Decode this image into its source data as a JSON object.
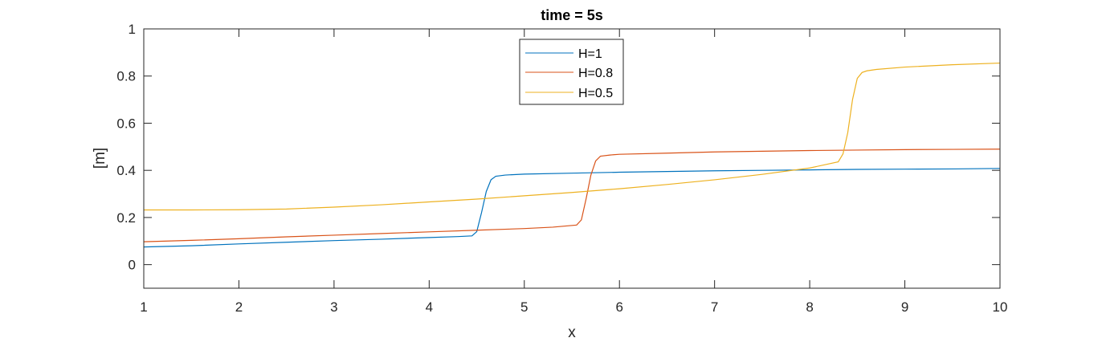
{
  "chart_data": {
    "type": "line",
    "title": "time = 5s",
    "xlabel": "x",
    "ylabel": "[m]",
    "xlim": [
      1,
      10
    ],
    "ylim": [
      -0.1,
      1
    ],
    "xticks": [
      1,
      2,
      3,
      4,
      5,
      6,
      7,
      8,
      9,
      10
    ],
    "yticks": [
      0,
      0.2,
      0.4,
      0.6,
      0.8,
      1
    ],
    "xtick_labels": [
      "1",
      "2",
      "3",
      "4",
      "5",
      "6",
      "7",
      "8",
      "9",
      "10"
    ],
    "ytick_labels": [
      "0",
      "0.2",
      "0.4",
      "0.6",
      "0.8",
      "1"
    ],
    "grid": false,
    "legend_position": "top-center",
    "series": [
      {
        "name": "H=1",
        "color": "#0072BD",
        "x": [
          1,
          1.5,
          2,
          2.5,
          3,
          3.5,
          4,
          4.3,
          4.45,
          4.5,
          4.55,
          4.6,
          4.65,
          4.7,
          4.8,
          5,
          5.5,
          6,
          6.5,
          7,
          7.5,
          8,
          8.5,
          9,
          9.5,
          10
        ],
        "y": [
          0.075,
          0.08,
          0.088,
          0.095,
          0.102,
          0.108,
          0.115,
          0.119,
          0.122,
          0.14,
          0.22,
          0.31,
          0.36,
          0.375,
          0.38,
          0.384,
          0.388,
          0.392,
          0.395,
          0.398,
          0.4,
          0.402,
          0.404,
          0.405,
          0.406,
          0.408
        ]
      },
      {
        "name": "H=0.8",
        "color": "#D95319",
        "x": [
          1,
          1.5,
          2,
          2.5,
          3,
          3.5,
          4,
          4.5,
          5,
          5.3,
          5.55,
          5.6,
          5.65,
          5.7,
          5.75,
          5.8,
          5.9,
          6,
          6.5,
          7,
          7.5,
          8,
          8.5,
          9,
          9.5,
          10
        ],
        "y": [
          0.097,
          0.103,
          0.11,
          0.118,
          0.125,
          0.132,
          0.139,
          0.146,
          0.153,
          0.159,
          0.168,
          0.19,
          0.28,
          0.38,
          0.44,
          0.46,
          0.465,
          0.468,
          0.473,
          0.478,
          0.481,
          0.484,
          0.486,
          0.488,
          0.489,
          0.49
        ]
      },
      {
        "name": "H=0.5",
        "color": "#EDB120",
        "x": [
          1,
          1.5,
          2,
          2.5,
          3,
          3.5,
          4,
          4.5,
          5,
          5.5,
          6,
          6.5,
          7,
          7.5,
          8,
          8.3,
          8.35,
          8.4,
          8.45,
          8.5,
          8.55,
          8.6,
          8.7,
          9,
          9.5,
          10
        ],
        "y": [
          0.232,
          0.232,
          0.233,
          0.236,
          0.244,
          0.254,
          0.266,
          0.278,
          0.292,
          0.306,
          0.322,
          0.34,
          0.36,
          0.383,
          0.41,
          0.436,
          0.47,
          0.56,
          0.7,
          0.79,
          0.815,
          0.822,
          0.828,
          0.838,
          0.848,
          0.855
        ]
      }
    ]
  }
}
